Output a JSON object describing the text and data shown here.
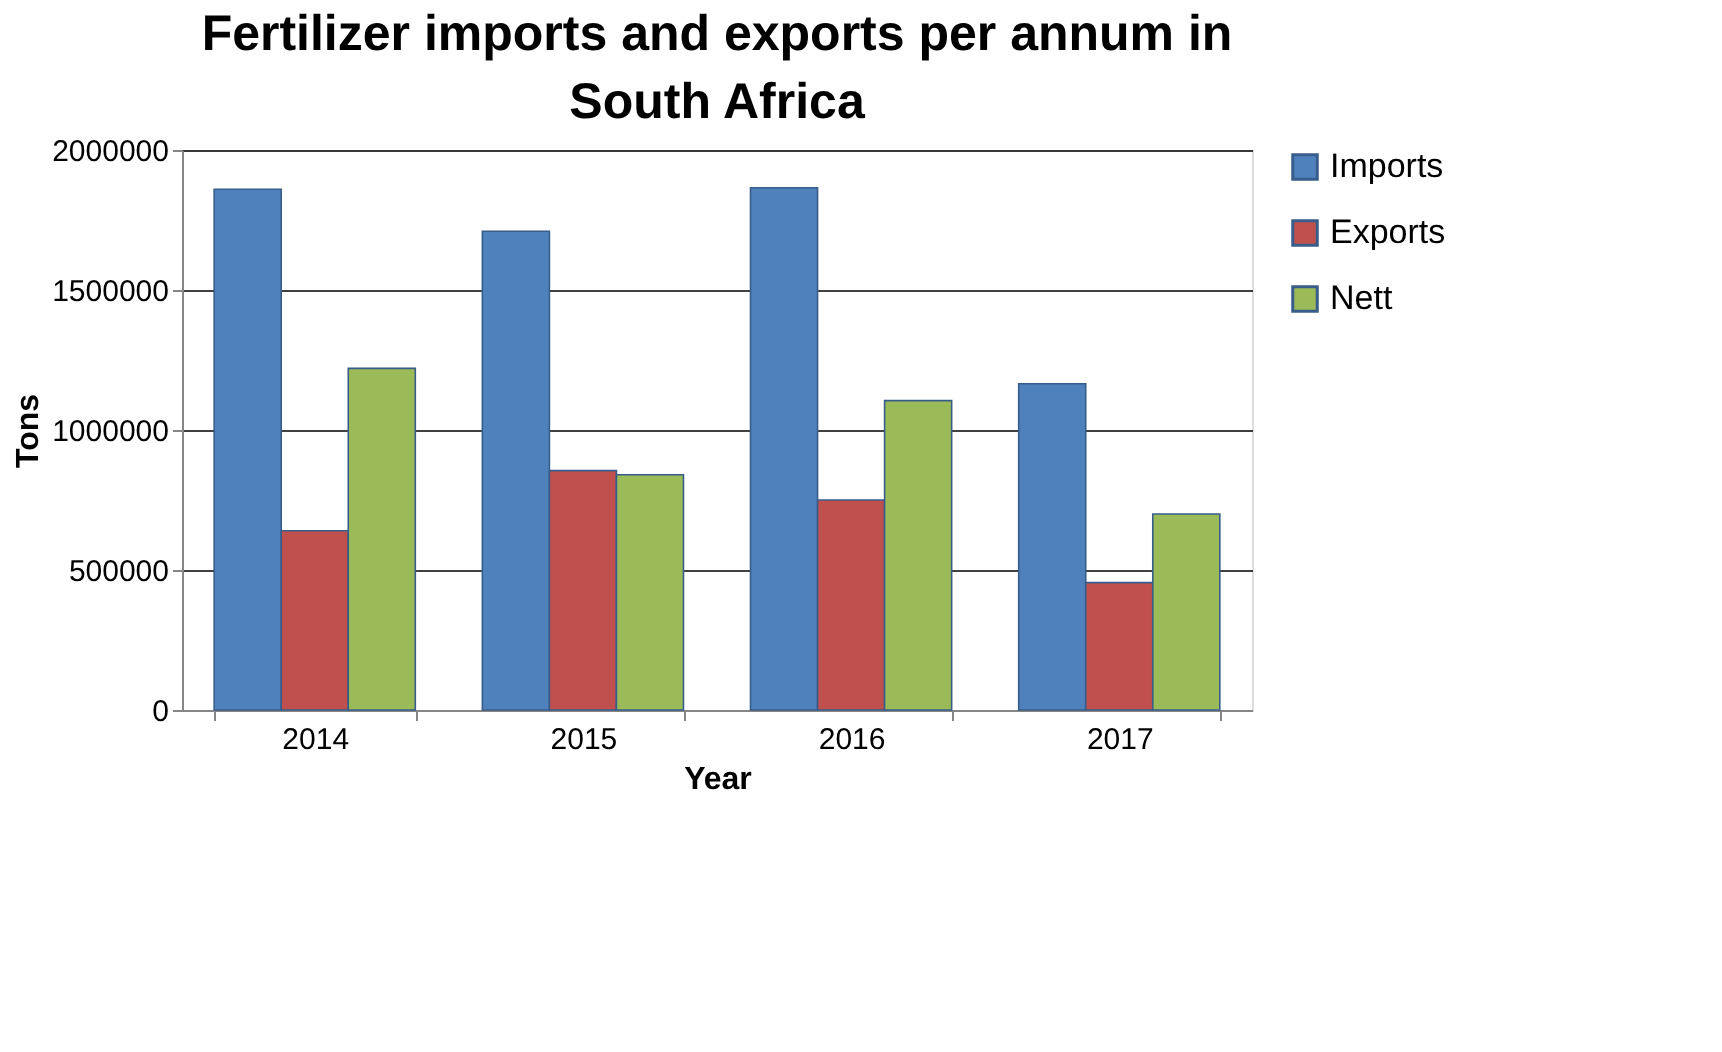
{
  "chart_data": {
    "type": "bar",
    "title": "Fertilizer imports and exports per annum in South Africa",
    "xlabel": "Year",
    "ylabel": "Tons",
    "categories": [
      "2014",
      "2015",
      "2016",
      "2017"
    ],
    "series": [
      {
        "name": "Imports",
        "color": "#4f81bd",
        "values": [
          1860000,
          1710000,
          1865000,
          1165000
        ]
      },
      {
        "name": "Exports",
        "color": "#c0504d",
        "values": [
          640000,
          855000,
          750000,
          455000
        ]
      },
      {
        "name": "Nett",
        "color": "#9bbb59",
        "values": [
          1220000,
          840000,
          1105000,
          700000
        ]
      }
    ],
    "ylim": [
      0,
      2000000
    ],
    "yticks": [
      0,
      500000,
      1000000,
      1500000,
      2000000
    ],
    "grid": "y",
    "legend": "right"
  }
}
